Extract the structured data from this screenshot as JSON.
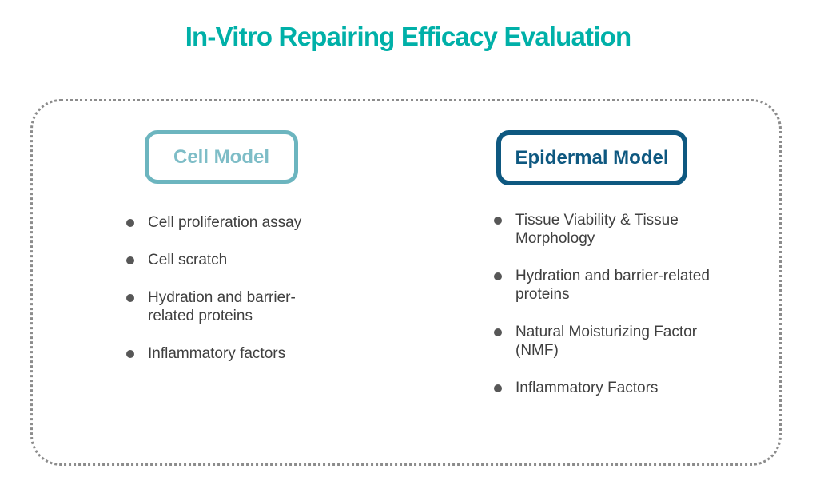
{
  "title": "In-Vitro Repairing Efficacy Evaluation",
  "colors": {
    "title_color": "#00B0A8",
    "panel_border": "#8C8C8C",
    "cell_border": "#6CB5BF",
    "cell_text": "#7EBDC7",
    "epidermal_color": "#0E5880",
    "body_text": "#3F3F3F",
    "bullet_color": "#575757"
  },
  "columns": [
    {
      "header": "Cell Model",
      "items": [
        "Cell proliferation assay",
        "Cell scratch",
        "Hydration and barrier-\nrelated proteins",
        "Inflammatory factors"
      ]
    },
    {
      "header": "Epidermal Model",
      "items": [
        "Tissue Viability & Tissue\nMorphology",
        "Hydration and barrier-related\nproteins",
        "Natural Moisturizing Factor\n(NMF)",
        "Inflammatory Factors"
      ]
    }
  ]
}
